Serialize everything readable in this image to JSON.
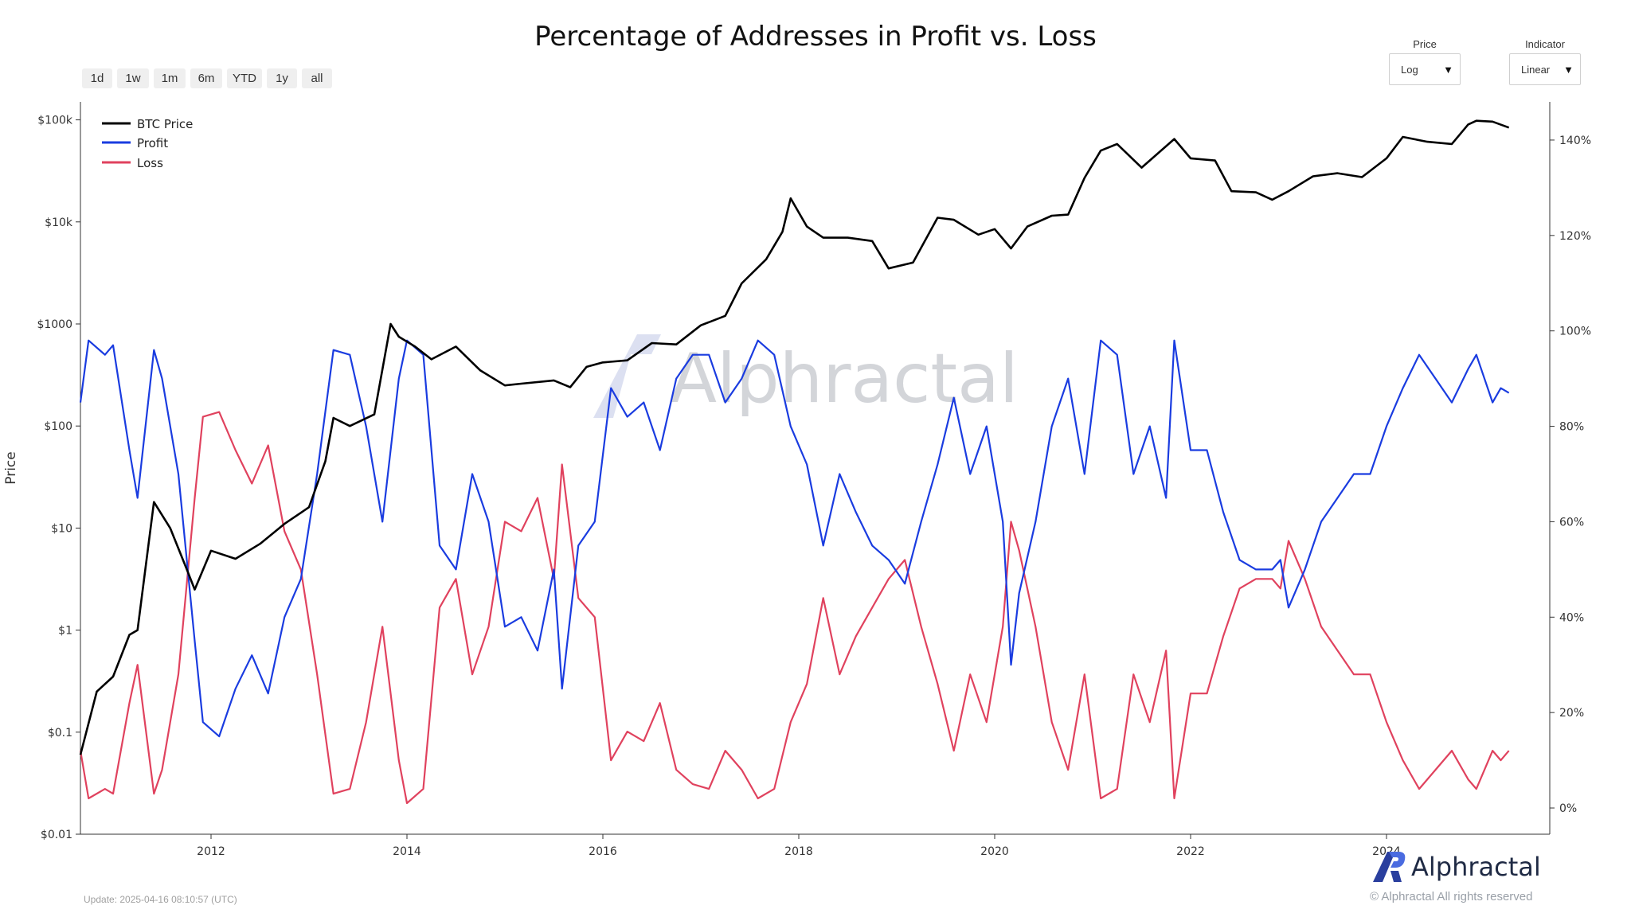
{
  "header": {
    "title": "Percentage of Addresses in Profit vs. Loss"
  },
  "range_buttons": [
    "1d",
    "1w",
    "1m",
    "6m",
    "YTD",
    "1y",
    "all"
  ],
  "controls": {
    "price_label": "Price",
    "price_value": "Log",
    "indicator_label": "Indicator",
    "indicator_value": "Linear"
  },
  "watermark": "Alphractal",
  "footer": {
    "update": "Update: 2025-04-16 08:10:57 (UTC)",
    "brand": "Alphractal",
    "copyright": "© Alphractal All rights reserved"
  },
  "colors": {
    "btc": "#000000",
    "profit": "#1a3ce0",
    "loss": "#e0425e",
    "brand": "#2a3f9e"
  },
  "chart_data": {
    "type": "line",
    "title": "Percentage of Addresses in Profit vs. Loss",
    "xlabel": "",
    "ylabel": "Price",
    "y2label": "",
    "y_scale": "log",
    "ylim": [
      0.01,
      150000
    ],
    "y2lim": [
      -5.5,
      148
    ],
    "xlim": [
      "2010-09",
      "2025-09"
    ],
    "x_ticks": [
      "2012",
      "2014",
      "2016",
      "2018",
      "2020",
      "2022",
      "2024"
    ],
    "y_ticks": [
      "$0.01",
      "$0.1",
      "$1",
      "$10",
      "$100",
      "$1000",
      "$10k",
      "$100k"
    ],
    "y2_ticks": [
      "0%",
      "20%",
      "40%",
      "60%",
      "80%",
      "100%",
      "120%",
      "140%"
    ],
    "legend": [
      "BTC Price",
      "Profit",
      "Loss"
    ],
    "legend_position": "top-left",
    "grid": false,
    "series": [
      {
        "name": "BTC Price",
        "axis": "left",
        "x": [
          "2010-09",
          "2010-11",
          "2011-01",
          "2011-03",
          "2011-04",
          "2011-06",
          "2011-08",
          "2011-10",
          "2011-11",
          "2012-01",
          "2012-04",
          "2012-07",
          "2012-10",
          "2013-01",
          "2013-03",
          "2013-04",
          "2013-06",
          "2013-09",
          "2013-11",
          "2013-12",
          "2014-02",
          "2014-04",
          "2014-07",
          "2014-10",
          "2015-01",
          "2015-03",
          "2015-07",
          "2015-09",
          "2015-11",
          "2016-01",
          "2016-04",
          "2016-07",
          "2016-10",
          "2017-01",
          "2017-04",
          "2017-06",
          "2017-09",
          "2017-11",
          "2017-12",
          "2018-02",
          "2018-04",
          "2018-07",
          "2018-10",
          "2018-12",
          "2019-03",
          "2019-06",
          "2019-08",
          "2019-11",
          "2020-01",
          "2020-03",
          "2020-05",
          "2020-08",
          "2020-10",
          "2020-12",
          "2021-02",
          "2021-04",
          "2021-07",
          "2021-09",
          "2021-11",
          "2022-01",
          "2022-04",
          "2022-06",
          "2022-09",
          "2022-11",
          "2023-01",
          "2023-04",
          "2023-07",
          "2023-10",
          "2024-01",
          "2024-03",
          "2024-06",
          "2024-09",
          "2024-11",
          "2024-12",
          "2025-02",
          "2025-04"
        ],
        "values": [
          0.06,
          0.25,
          0.35,
          0.9,
          1.0,
          18,
          10,
          4.0,
          2.5,
          6,
          5,
          7,
          11,
          16,
          45,
          120,
          100,
          130,
          1000,
          750,
          600,
          450,
          600,
          350,
          250,
          260,
          280,
          240,
          380,
          420,
          440,
          650,
          630,
          970,
          1200,
          2500,
          4300,
          8000,
          17000,
          9000,
          7000,
          7000,
          6500,
          3500,
          4000,
          11000,
          10500,
          7500,
          8500,
          5500,
          9000,
          11500,
          11800,
          27000,
          50000,
          58000,
          34000,
          47000,
          65000,
          42000,
          40000,
          20000,
          19500,
          16500,
          20000,
          28000,
          30000,
          27500,
          42000,
          68000,
          61000,
          58000,
          90000,
          98000,
          96000,
          84000
        ]
      },
      {
        "name": "Profit",
        "axis": "right",
        "x": [
          "2010-09",
          "2010-10",
          "2010-12",
          "2011-01",
          "2011-03",
          "2011-04",
          "2011-06",
          "2011-07",
          "2011-09",
          "2011-11",
          "2011-12",
          "2012-02",
          "2012-04",
          "2012-06",
          "2012-08",
          "2012-10",
          "2012-12",
          "2013-02",
          "2013-04",
          "2013-06",
          "2013-08",
          "2013-10",
          "2013-12",
          "2014-01",
          "2014-03",
          "2014-05",
          "2014-07",
          "2014-09",
          "2014-11",
          "2015-01",
          "2015-03",
          "2015-05",
          "2015-07",
          "2015-08",
          "2015-10",
          "2015-12",
          "2016-02",
          "2016-04",
          "2016-06",
          "2016-08",
          "2016-10",
          "2016-12",
          "2017-02",
          "2017-04",
          "2017-06",
          "2017-08",
          "2017-10",
          "2017-12",
          "2018-02",
          "2018-04",
          "2018-06",
          "2018-08",
          "2018-10",
          "2018-12",
          "2019-02",
          "2019-04",
          "2019-06",
          "2019-08",
          "2019-10",
          "2019-12",
          "2020-02",
          "2020-03",
          "2020-04",
          "2020-06",
          "2020-08",
          "2020-10",
          "2020-12",
          "2021-02",
          "2021-04",
          "2021-06",
          "2021-08",
          "2021-10",
          "2021-11",
          "2022-01",
          "2022-03",
          "2022-05",
          "2022-07",
          "2022-09",
          "2022-11",
          "2022-12",
          "2023-01",
          "2023-03",
          "2023-05",
          "2023-07",
          "2023-09",
          "2023-11",
          "2024-01",
          "2024-03",
          "2024-05",
          "2024-07",
          "2024-09",
          "2024-11",
          "2024-12",
          "2025-02",
          "2025-03",
          "2025-04"
        ],
        "values": [
          85,
          98,
          95,
          97,
          75,
          65,
          96,
          90,
          70,
          35,
          18,
          15,
          25,
          32,
          24,
          40,
          48,
          70,
          96,
          95,
          80,
          60,
          90,
          98,
          95,
          55,
          50,
          70,
          60,
          38,
          40,
          33,
          50,
          25,
          55,
          60,
          88,
          82,
          85,
          75,
          90,
          95,
          95,
          85,
          90,
          98,
          95,
          80,
          72,
          55,
          70,
          62,
          55,
          52,
          47,
          60,
          72,
          86,
          70,
          80,
          60,
          30,
          45,
          60,
          80,
          90,
          70,
          98,
          95,
          70,
          80,
          65,
          98,
          75,
          75,
          62,
          52,
          50,
          50,
          52,
          42,
          50,
          60,
          65,
          70,
          70,
          80,
          88,
          95,
          90,
          85,
          92,
          95,
          85,
          88,
          87
        ]
      },
      {
        "name": "Loss",
        "axis": "right",
        "x": [
          "2010-09",
          "2010-10",
          "2010-12",
          "2011-01",
          "2011-03",
          "2011-04",
          "2011-06",
          "2011-07",
          "2011-09",
          "2011-11",
          "2011-12",
          "2012-02",
          "2012-04",
          "2012-06",
          "2012-08",
          "2012-10",
          "2012-12",
          "2013-02",
          "2013-04",
          "2013-06",
          "2013-08",
          "2013-10",
          "2013-12",
          "2014-01",
          "2014-03",
          "2014-05",
          "2014-07",
          "2014-09",
          "2014-11",
          "2015-01",
          "2015-03",
          "2015-05",
          "2015-07",
          "2015-08",
          "2015-10",
          "2015-12",
          "2016-02",
          "2016-04",
          "2016-06",
          "2016-08",
          "2016-10",
          "2016-12",
          "2017-02",
          "2017-04",
          "2017-06",
          "2017-08",
          "2017-10",
          "2017-12",
          "2018-02",
          "2018-04",
          "2018-06",
          "2018-08",
          "2018-10",
          "2018-12",
          "2019-02",
          "2019-04",
          "2019-06",
          "2019-08",
          "2019-10",
          "2019-12",
          "2020-02",
          "2020-03",
          "2020-04",
          "2020-06",
          "2020-08",
          "2020-10",
          "2020-12",
          "2021-02",
          "2021-04",
          "2021-06",
          "2021-08",
          "2021-10",
          "2021-11",
          "2022-01",
          "2022-03",
          "2022-05",
          "2022-07",
          "2022-09",
          "2022-11",
          "2022-12",
          "2023-01",
          "2023-03",
          "2023-05",
          "2023-07",
          "2023-09",
          "2023-11",
          "2024-01",
          "2024-03",
          "2024-05",
          "2024-07",
          "2024-09",
          "2024-11",
          "2024-12",
          "2025-02",
          "2025-03",
          "2025-04"
        ],
        "values": [
          12,
          2,
          4,
          3,
          22,
          30,
          3,
          8,
          28,
          65,
          82,
          83,
          75,
          68,
          76,
          58,
          50,
          28,
          3,
          4,
          18,
          38,
          10,
          1,
          4,
          42,
          48,
          28,
          38,
          60,
          58,
          65,
          48,
          72,
          44,
          40,
          10,
          16,
          14,
          22,
          8,
          5,
          4,
          12,
          8,
          2,
          4,
          18,
          26,
          44,
          28,
          36,
          42,
          48,
          52,
          38,
          26,
          12,
          28,
          18,
          38,
          60,
          54,
          38,
          18,
          8,
          28,
          2,
          4,
          28,
          18,
          33,
          2,
          24,
          24,
          36,
          46,
          48,
          48,
          46,
          56,
          48,
          38,
          33,
          28,
          28,
          18,
          10,
          4,
          8,
          12,
          6,
          4,
          12,
          10,
          12
        ]
      }
    ]
  }
}
